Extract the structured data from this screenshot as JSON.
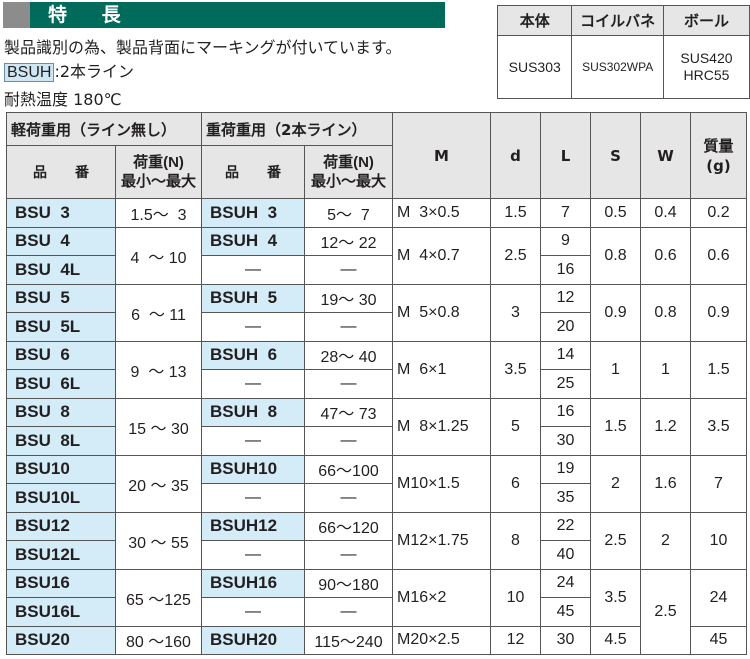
{
  "header": {
    "title": "特 長"
  },
  "features": {
    "line1": "製品識別の為、製品背面にマーキングが付いています。",
    "badge": "BSUH",
    "badge_desc": ":2本ライン",
    "heat": "耐熱温度 180℃"
  },
  "materials": {
    "headers": [
      "本体",
      "コイルバネ",
      "ボール"
    ],
    "values": [
      "SUS303",
      "SUS302WPA",
      "SUS420\nHRC55"
    ]
  },
  "table": {
    "group_light": "軽荷重用（ライン無し）",
    "group_heavy": "重荷重用（2本ライン）",
    "col_part": "品　　番",
    "col_load_1": "荷重(N)",
    "col_load_2": "最小～最大",
    "col_M": "M",
    "col_d": "d",
    "col_L": "L",
    "col_S": "S",
    "col_W": "W",
    "col_mass_1": "質量",
    "col_mass_2": "(g)",
    "groups": [
      {
        "light": [
          "BSU  3"
        ],
        "light_load": "1.5～  3",
        "heavy": [
          [
            "BSUH  3",
            "5～  7"
          ]
        ],
        "M": "M  3×0.5",
        "d": "1.5",
        "L": [
          "7"
        ],
        "S": "0.5",
        "W": "0.4",
        "mass": "0.2"
      },
      {
        "light": [
          "BSU  4",
          "BSU  4L"
        ],
        "light_load": "4  ～ 10",
        "heavy": [
          [
            "BSUH  4",
            "12～ 22"
          ],
          [
            "—",
            "—"
          ]
        ],
        "M": "M  4×0.7",
        "d": "2.5",
        "L": [
          "9",
          "16"
        ],
        "S": "0.8",
        "W": "0.6",
        "mass": "0.6"
      },
      {
        "light": [
          "BSU  5",
          "BSU  5L"
        ],
        "light_load": "6  ～ 11",
        "heavy": [
          [
            "BSUH  5",
            "19～ 30"
          ],
          [
            "—",
            "—"
          ]
        ],
        "M": "M  5×0.8",
        "d": "3",
        "L": [
          "12",
          "20"
        ],
        "S": "0.9",
        "W": "0.8",
        "mass": "0.9"
      },
      {
        "light": [
          "BSU  6",
          "BSU  6L"
        ],
        "light_load": "9  ～ 13",
        "heavy": [
          [
            "BSUH  6",
            "28～ 40"
          ],
          [
            "—",
            "—"
          ]
        ],
        "M": "M  6×1",
        "d": "3.5",
        "L": [
          "14",
          "25"
        ],
        "S": "1",
        "W": "1",
        "mass": "1.5"
      },
      {
        "light": [
          "BSU  8",
          "BSU  8L"
        ],
        "light_load": "15 ～ 30",
        "heavy": [
          [
            "BSUH  8",
            "47～ 73"
          ],
          [
            "—",
            "—"
          ]
        ],
        "M": "M  8×1.25",
        "d": "5",
        "L": [
          "16",
          "30"
        ],
        "S": "1.5",
        "W": "1.2",
        "mass": "3.5"
      },
      {
        "light": [
          "BSU10",
          "BSU10L"
        ],
        "light_load": "20 ～ 35",
        "heavy": [
          [
            "BSUH10",
            "66～100"
          ],
          [
            "—",
            "—"
          ]
        ],
        "M": "M10×1.5",
        "d": "6",
        "L": [
          "19",
          "35"
        ],
        "S": "2",
        "W": "1.6",
        "mass": "7"
      },
      {
        "light": [
          "BSU12",
          "BSU12L"
        ],
        "light_load": "30 ～ 55",
        "heavy": [
          [
            "BSUH12",
            "66～120"
          ],
          [
            "—",
            "—"
          ]
        ],
        "M": "M12×1.75",
        "d": "8",
        "L": [
          "22",
          "40"
        ],
        "S": "2.5",
        "W": "2",
        "mass": "10"
      },
      {
        "light": [
          "BSU16",
          "BSU16L"
        ],
        "light_load": "65 ～125",
        "heavy": [
          [
            "BSUH16",
            "90～180"
          ],
          [
            "—",
            "—"
          ]
        ],
        "M": "M16×2",
        "d": "10",
        "L": [
          "24",
          "45"
        ],
        "S": "3.5",
        "W": "2.5",
        "W_rows": 3,
        "mass": "24"
      },
      {
        "light": [
          "BSU20"
        ],
        "light_load": "80 ～160",
        "heavy": [
          [
            "BSUH20",
            "115～240"
          ]
        ],
        "M": "M20×2.5",
        "d": "12",
        "L": [
          "30"
        ],
        "S": "4.5",
        "W": null,
        "mass": "45"
      }
    ]
  }
}
